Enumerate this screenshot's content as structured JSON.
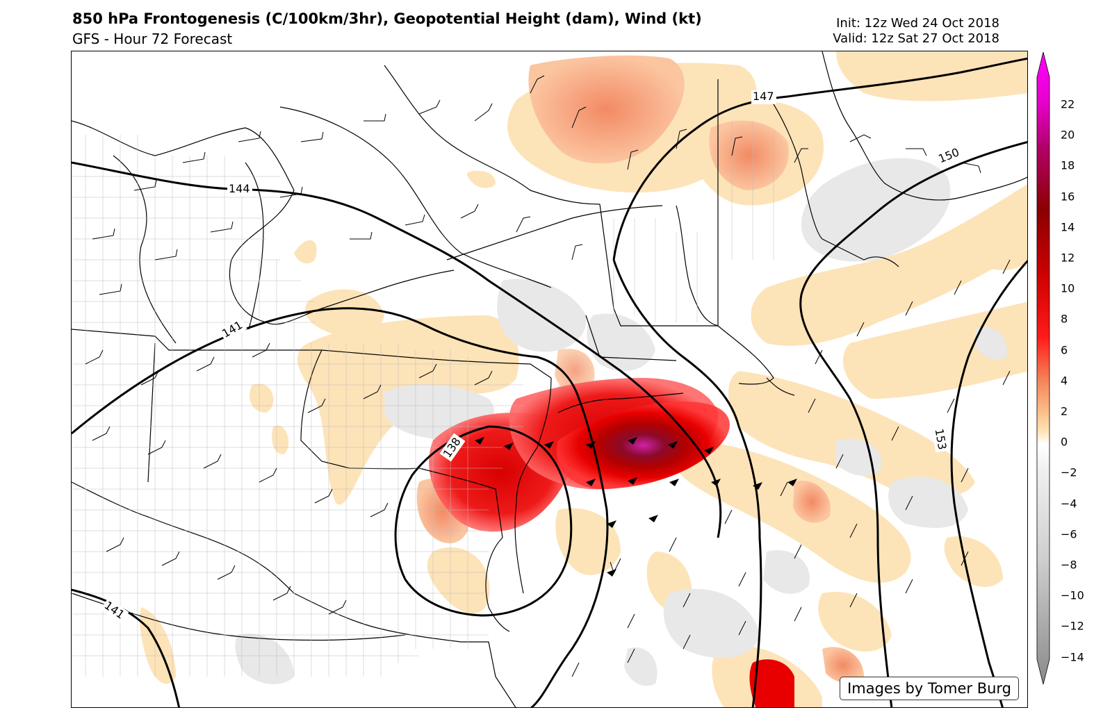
{
  "header": {
    "title": "850 hPa Frontogenesis (C/100km/3hr),  Geopotential Height (dam),  Wind (kt)",
    "subtitle": "GFS - Hour 72 Forecast",
    "init": "Init: 12z Wed 24 Oct 2018",
    "valid": "Valid: 12z Sat 27 Oct 2018"
  },
  "map": {
    "credit": "Images by Tomer Burg",
    "contour_labels": {
      "c144": "144",
      "c147": "147",
      "c150": "150",
      "c153": "153",
      "c141": "141",
      "c138": "138",
      "c141_partial": "141"
    }
  },
  "colorbar": {
    "ticks": [
      "22",
      "20",
      "18",
      "16",
      "14",
      "12",
      "10",
      "8",
      "6",
      "4",
      "2",
      "0",
      "−2",
      "−4",
      "−6",
      "−8",
      "−10",
      "−12",
      "−14"
    ],
    "colors": {
      "max": "#ff00ff",
      "magenta": "#cc33aa",
      "dark_red": "#8b0000",
      "red": "#e30000",
      "orange": "#f5845a",
      "tan": "#fde3b8",
      "white": "#f5f5f5",
      "gray": "#aaaaaa",
      "dark_gray": "#8a8a8a"
    }
  }
}
